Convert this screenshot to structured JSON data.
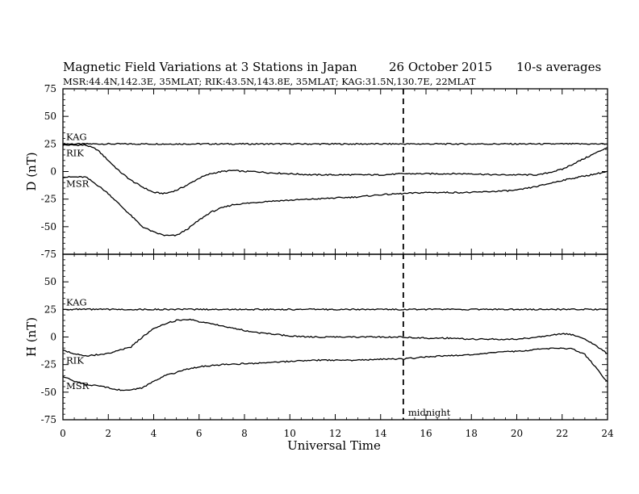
{
  "chart_data": {
    "type": "line",
    "title": "Magnetic Field Variations at 3 Stations in Japan",
    "date": "26 October 2015",
    "averaging": "10-s averages",
    "subtitle": "MSR:44.4N,142.3E, 35MLAT;  RIK:43.5N,143.8E, 35MLAT;  KAG:31.5N,130.7E, 22MLAT",
    "xlabel": "Universal Time",
    "xlim": [
      0,
      24
    ],
    "xticks": [
      0,
      2,
      4,
      6,
      8,
      10,
      12,
      14,
      16,
      18,
      20,
      22,
      24
    ],
    "grid": false,
    "annotation": {
      "x": 15,
      "label": "midnight"
    },
    "panels": [
      {
        "ylabel": "D (nT)",
        "ylim": [
          -75,
          75
        ],
        "yticks": [
          -75,
          -50,
          -25,
          0,
          25,
          50,
          75
        ],
        "x": [
          0,
          1,
          1.5,
          2,
          2.5,
          3,
          3.5,
          4,
          4.5,
          5,
          5.5,
          6,
          6.5,
          7,
          7.5,
          8,
          8.5,
          9,
          10,
          11,
          12,
          13,
          14,
          15,
          16,
          17,
          18,
          19,
          20,
          21,
          22,
          23,
          24
        ],
        "series": [
          {
            "name": "KAG",
            "values": [
              25,
              25,
              25,
              25,
              25,
              25,
              25,
              25,
              25,
              25,
              25,
              25,
              25,
              25,
              25,
              25,
              25,
              25,
              25,
              25,
              25,
              25,
              25,
              25,
              25,
              25,
              25,
              25,
              25,
              25,
              25,
              25,
              25
            ]
          },
          {
            "name": "RIK",
            "values": [
              24,
              24,
              20,
              10,
              0,
              -8,
              -14,
              -19,
              -20,
              -17,
              -12,
              -6,
              -2,
              0,
              1,
              0,
              0,
              -1,
              -2,
              -3,
              -3,
              -3,
              -3,
              -2,
              -2,
              -2,
              -2,
              -3,
              -3,
              -3,
              2,
              12,
              22
            ]
          },
          {
            "name": "MSR",
            "values": [
              -5,
              -5,
              -12,
              -20,
              -30,
              -40,
              -50,
              -55,
              -58,
              -58,
              -52,
              -44,
              -37,
              -33,
              -30,
              -29,
              -28,
              -27,
              -26,
              -25,
              -24,
              -23,
              -21,
              -20,
              -19,
              -19,
              -19,
              -18,
              -17,
              -13,
              -8,
              -4,
              0
            ]
          }
        ]
      },
      {
        "ylabel": "H (nT)",
        "ylim": [
          -75,
          75
        ],
        "yticks": [
          -75,
          -50,
          -25,
          0,
          25,
          50,
          75
        ],
        "x": [
          0,
          0.5,
          1,
          1.5,
          2,
          2.5,
          3,
          3.5,
          4,
          4.5,
          5,
          5.5,
          6,
          6.5,
          7,
          7.5,
          8,
          8.5,
          9,
          10,
          11,
          12,
          13,
          14,
          15,
          16,
          17,
          18,
          19,
          20,
          21,
          22,
          22.5,
          23,
          23.5,
          24
        ],
        "series": [
          {
            "name": "KAG",
            "values": [
              25,
              25,
              25,
              25,
              25,
              25,
              25,
              25,
              25,
              25,
              25,
              25,
              25,
              25,
              25,
              25,
              25,
              25,
              25,
              25,
              25,
              25,
              25,
              25,
              25,
              25,
              25,
              25,
              25,
              25,
              25,
              25,
              25,
              25,
              25,
              25
            ]
          },
          {
            "name": "RIK",
            "values": [
              -12,
              -15,
              -17,
              -16,
              -15,
              -12,
              -9,
              0,
              8,
              12,
              15,
              16,
              14,
              12,
              10,
              8,
              6,
              4,
              3,
              1,
              0,
              0,
              0,
              0,
              0,
              -1,
              -1,
              -2,
              -2,
              -2,
              0,
              3,
              2,
              -2,
              -8,
              -15
            ]
          },
          {
            "name": "MSR",
            "values": [
              -36,
              -40,
              -43,
              -44,
              -46,
              -48,
              -48,
              -46,
              -40,
              -35,
              -32,
              -29,
              -27,
              -26,
              -25,
              -25,
              -24,
              -24,
              -23,
              -22,
              -21,
              -21,
              -21,
              -20,
              -20,
              -18,
              -17,
              -16,
              -14,
              -13,
              -11,
              -10,
              -11,
              -16,
              -28,
              -41
            ]
          }
        ]
      }
    ]
  }
}
